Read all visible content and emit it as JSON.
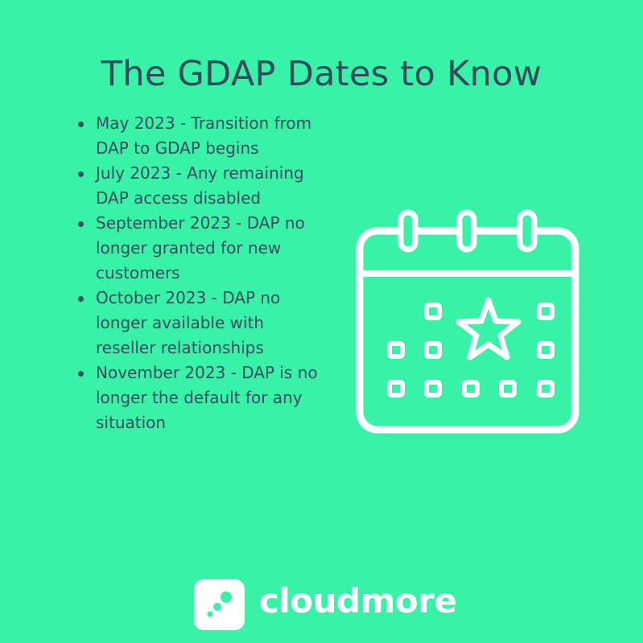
{
  "title": "The GDAP Dates to Know",
  "dates": [
    "May 2023 - Transition from DAP to GDAP begins",
    "July 2023 - Any remaining DAP access disabled",
    "September 2023 - DAP no longer granted for new customers",
    "October 2023 - DAP no longer available with reseller relationships",
    "November 2023 - DAP is no longer the default for any situation"
  ],
  "icon": "calendar-star-icon",
  "brand": {
    "name": "cloudmore",
    "logo": "cloudmore-logo-icon"
  },
  "colors": {
    "background": "#37F3A7",
    "text": "#3B4A5E",
    "icon": "#FFFFFF"
  }
}
